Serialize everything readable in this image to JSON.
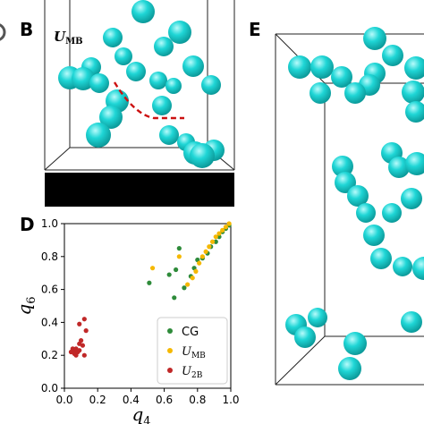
{
  "colors": {
    "sphere": "#1fd6d6",
    "sphere_light": "#b8fbfb",
    "sphere_dark": "#0c9a9a",
    "dashed_curve": "#cc1111",
    "cg": "#2e8b3a",
    "umb": "#f5b800",
    "u2b": "#c02828"
  },
  "panels": {
    "b": {
      "letter": "B",
      "label_main": "U",
      "label_sub": "MB"
    },
    "d": {
      "letter": "D"
    },
    "e": {
      "letter": "E"
    }
  },
  "chart_data": {
    "type": "scatter",
    "title": "",
    "xlabel": "q",
    "xlabel_sub": "4",
    "ylabel": "q",
    "ylabel_sub": "6",
    "xlim": [
      0.0,
      1.0
    ],
    "ylim": [
      0.0,
      1.0
    ],
    "xticks": [
      "0.0",
      "0.2",
      "0.4",
      "0.6",
      "0.8",
      "1.0"
    ],
    "yticks": [
      "0.0",
      "0.2",
      "0.4",
      "0.6",
      "0.8",
      "1.0"
    ],
    "grid": false,
    "legend_position": "bottom-right",
    "series": [
      {
        "name": "CG",
        "color": "#2e8b3a",
        "points": [
          [
            0.51,
            0.64
          ],
          [
            0.63,
            0.69
          ],
          [
            0.66,
            0.55
          ],
          [
            0.67,
            0.72
          ],
          [
            0.69,
            0.85
          ],
          [
            0.72,
            0.61
          ],
          [
            0.76,
            0.68
          ],
          [
            0.78,
            0.73
          ],
          [
            0.8,
            0.78
          ],
          [
            0.83,
            0.79
          ],
          [
            0.86,
            0.82
          ],
          [
            0.88,
            0.86
          ],
          [
            0.91,
            0.89
          ],
          [
            0.93,
            0.92
          ],
          [
            0.95,
            0.95
          ],
          [
            0.97,
            0.97
          ],
          [
            0.99,
            0.99
          ]
        ]
      },
      {
        "name": "U",
        "name_sub": "MB",
        "color": "#f5b800",
        "points": [
          [
            0.53,
            0.73
          ],
          [
            0.69,
            0.8
          ],
          [
            0.74,
            0.63
          ],
          [
            0.77,
            0.67
          ],
          [
            0.79,
            0.71
          ],
          [
            0.81,
            0.76
          ],
          [
            0.83,
            0.8
          ],
          [
            0.85,
            0.83
          ],
          [
            0.87,
            0.86
          ],
          [
            0.89,
            0.89
          ],
          [
            0.91,
            0.92
          ],
          [
            0.93,
            0.94
          ],
          [
            0.95,
            0.96
          ],
          [
            0.97,
            0.98
          ],
          [
            0.99,
            1.0
          ]
        ]
      },
      {
        "name": "U",
        "name_sub": "2B",
        "color": "#c02828",
        "points": [
          [
            0.04,
            0.22
          ],
          [
            0.05,
            0.23
          ],
          [
            0.06,
            0.22
          ],
          [
            0.07,
            0.24
          ],
          [
            0.06,
            0.21
          ],
          [
            0.08,
            0.22
          ],
          [
            0.09,
            0.23
          ],
          [
            0.09,
            0.27
          ],
          [
            0.1,
            0.29
          ],
          [
            0.11,
            0.26
          ],
          [
            0.12,
            0.2
          ],
          [
            0.09,
            0.39
          ],
          [
            0.12,
            0.42
          ],
          [
            0.13,
            0.35
          ],
          [
            0.05,
            0.24
          ],
          [
            0.07,
            0.2
          ]
        ]
      }
    ]
  }
}
